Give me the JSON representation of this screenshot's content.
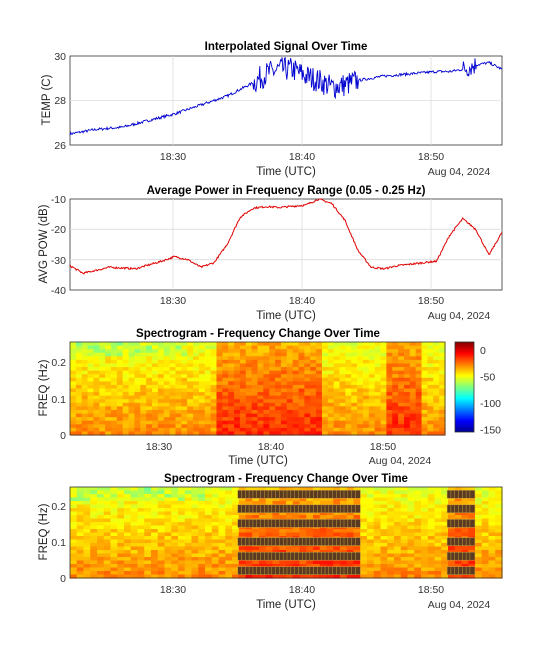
{
  "chart_data": [
    {
      "type": "line",
      "title": "Interpolated Signal Over Time",
      "xlabel": "Time (UTC)",
      "ylabel": "TEMP (C)",
      "date_label": "Aug 04, 2024",
      "x_ticks": [
        "18:30",
        "18:40",
        "18:50"
      ],
      "xlim": [
        "18:22",
        "18:55"
      ],
      "ylim": [
        26,
        30
      ],
      "y_ticks": [
        "26",
        "28",
        "30"
      ],
      "grid": true,
      "series": [
        {
          "color": "#0000d0",
          "x": [
            "18:22",
            "18:24",
            "18:26",
            "18:28",
            "18:30",
            "18:32",
            "18:34",
            "18:36",
            "18:37",
            "18:38",
            "18:39",
            "18:40",
            "18:41",
            "18:42",
            "18:43",
            "18:44",
            "18:46",
            "18:48",
            "18:50",
            "18:51",
            "18:52",
            "18:53",
            "18:54",
            "18:55"
          ],
          "values": [
            26.5,
            26.7,
            26.8,
            27.1,
            27.4,
            27.8,
            28.2,
            28.8,
            29.2,
            29.4,
            29.4,
            29.1,
            28.9,
            28.6,
            28.7,
            28.9,
            29.1,
            29.2,
            29.3,
            29.3,
            29.4,
            29.6,
            29.7,
            29.4
          ]
        }
      ]
    },
    {
      "type": "line",
      "title": "Average Power in Frequency Range (0.05 - 0.25 Hz)",
      "xlabel": "Time (UTC)",
      "ylabel": "AVG POW (dB)",
      "date_label": "Aug 04, 2024",
      "x_ticks": [
        "18:30",
        "18:40",
        "18:50"
      ],
      "xlim": [
        "18:22",
        "18:55"
      ],
      "ylim": [
        -40,
        -10
      ],
      "y_ticks": [
        "-40",
        "-30",
        "-20",
        "-10"
      ],
      "grid": true,
      "series": [
        {
          "color": "#e00000",
          "x": [
            "18:22",
            "18:23",
            "18:25",
            "18:27",
            "18:29",
            "18:30",
            "18:31",
            "18:32",
            "18:33",
            "18:34",
            "18:35",
            "18:36",
            "18:37",
            "18:38",
            "18:40",
            "18:41",
            "18:42",
            "18:43",
            "18:44",
            "18:45",
            "18:46",
            "18:47",
            "18:48",
            "18:50",
            "18:51",
            "18:52",
            "18:53",
            "18:54",
            "18:55"
          ],
          "values": [
            -32,
            -34.5,
            -32.5,
            -33,
            -30.5,
            -29,
            -30,
            -32.5,
            -31,
            -25,
            -16,
            -13,
            -12.5,
            -12.8,
            -12,
            -10,
            -11.5,
            -17,
            -27,
            -32.5,
            -33,
            -32,
            -31.5,
            -30.5,
            -22,
            -16.5,
            -20,
            -28.5,
            -21
          ]
        }
      ]
    },
    {
      "type": "heatmap",
      "title": "Spectrogram - Frequency Change Over Time",
      "xlabel": "Time (UTC)",
      "ylabel": "FREQ (Hz)",
      "date_label": "Aug 04, 2024",
      "x_ticks": [
        "18:30",
        "18:40",
        "18:50"
      ],
      "y_ticks": [
        "0",
        "0.1",
        "0.2"
      ],
      "ylim": [
        0,
        0.25
      ],
      "colorbar": {
        "ticks": [
          "0",
          "-50",
          "-100",
          "-150"
        ],
        "range": [
          -155,
          15
        ]
      },
      "high_power_intervals": [
        [
          "18:35",
          "18:44"
        ],
        [
          "18:50",
          "18:53"
        ]
      ]
    },
    {
      "type": "heatmap",
      "title": "Spectrogram - Frequency Change Over Time",
      "xlabel": "Time (UTC)",
      "ylabel": "FREQ (Hz)",
      "date_label": "Aug 04, 2024",
      "x_ticks": [
        "18:30",
        "18:40",
        "18:50"
      ],
      "y_ticks": [
        "0",
        "0.1",
        "0.2"
      ],
      "ylim": [
        0,
        0.25
      ],
      "marker_color": "#5a3a20",
      "marker_freqs": [
        0.02,
        0.06,
        0.1,
        0.15,
        0.19,
        0.23
      ],
      "marked_intervals": [
        [
          "18:35",
          "18:44"
        ],
        [
          "18:51",
          "18:53"
        ]
      ]
    }
  ]
}
